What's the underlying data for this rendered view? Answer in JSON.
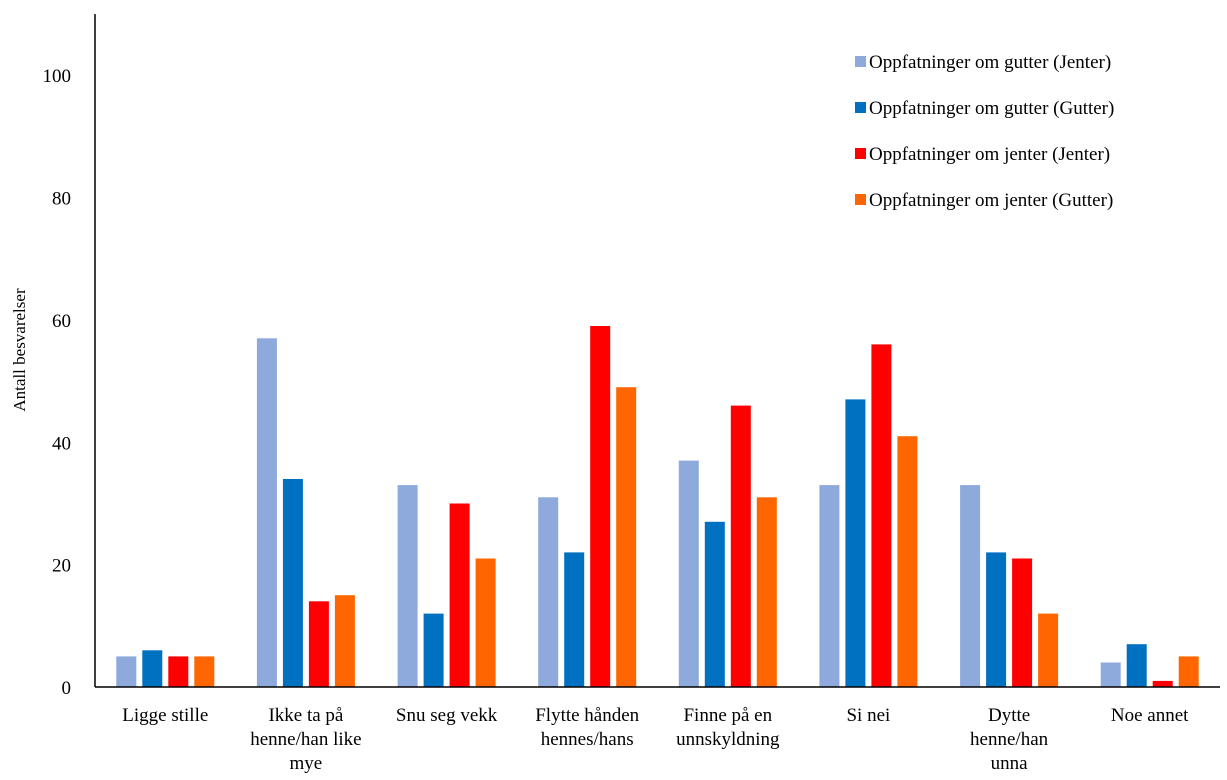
{
  "chart_data": {
    "type": "bar",
    "title": "",
    "xlabel": "",
    "ylabel": "Antall besvarelser",
    "ylim": [
      0,
      110
    ],
    "yticks": [
      0,
      20,
      40,
      60,
      80,
      100
    ],
    "grid": false,
    "legend_position": "top-right",
    "categories": [
      [
        "Ligge stille"
      ],
      [
        "Ikke ta på",
        "henne/han like",
        "mye"
      ],
      [
        "Snu seg vekk"
      ],
      [
        "Flytte hånden",
        "hennes/hans"
      ],
      [
        "Finne på en",
        "unnskyldning"
      ],
      [
        "Si nei"
      ],
      [
        "Dytte",
        "henne/han",
        "unna"
      ],
      [
        "Noe annet"
      ]
    ],
    "series": [
      {
        "name": "Oppfatninger om gutter (Jenter)",
        "color": "#8EA9DB",
        "values": [
          5,
          57,
          33,
          31,
          37,
          33,
          33,
          4
        ]
      },
      {
        "name": "Oppfatninger om gutter (Gutter)",
        "color": "#0070C0",
        "values": [
          6,
          34,
          12,
          22,
          27,
          47,
          22,
          7
        ]
      },
      {
        "name": "Oppfatninger om jenter (Jenter)",
        "color": "#FF0000",
        "values": [
          5,
          14,
          30,
          59,
          46,
          56,
          21,
          1
        ]
      },
      {
        "name": "Oppfatninger om jenter (Gutter)",
        "color": "#FF6600",
        "values": [
          5,
          15,
          21,
          49,
          31,
          41,
          12,
          5
        ]
      }
    ]
  }
}
